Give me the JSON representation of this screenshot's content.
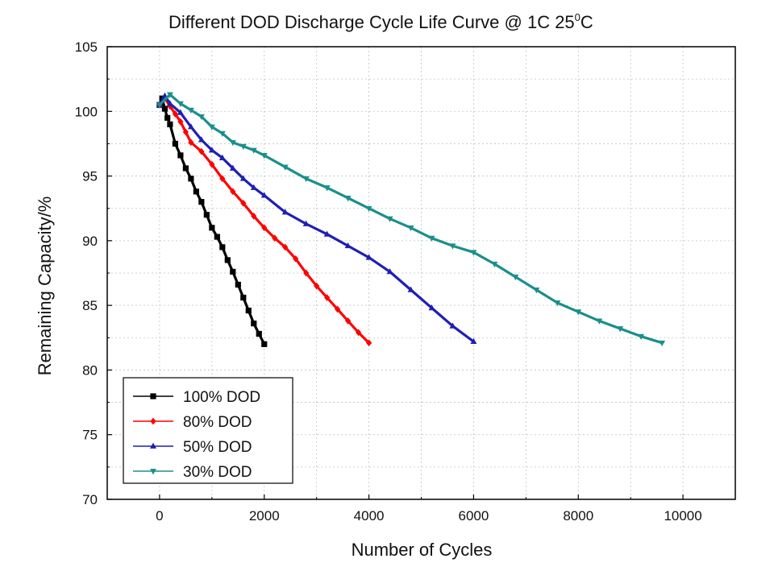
{
  "chart_data": {
    "type": "line",
    "title": "Different DOD Discharge Cycle Life Curve @ 1C 25",
    "title_superscript": "0",
    "title_suffix": "C",
    "xlabel": "Number of Cycles",
    "ylabel": "Remaining Capacity/%",
    "xlim": [
      -1000,
      11000
    ],
    "ylim": [
      70,
      105
    ],
    "xticks": [
      0,
      2000,
      4000,
      6000,
      8000,
      10000
    ],
    "yticks": [
      70,
      75,
      80,
      85,
      90,
      95,
      100,
      105
    ],
    "xtick_labels": [
      "0",
      "2000",
      "4000",
      "6000",
      "8000",
      "10000"
    ],
    "ytick_labels": [
      "70",
      "75",
      "80",
      "85",
      "90",
      "95",
      "100",
      "105"
    ],
    "grid": true,
    "legend_position": "bottom-left",
    "series": [
      {
        "name": "100% DOD",
        "color": "#000000",
        "marker": "square",
        "x": [
          0,
          50,
          100,
          150,
          200,
          300,
          400,
          500,
          600,
          700,
          800,
          900,
          1000,
          1100,
          1200,
          1300,
          1400,
          1500,
          1600,
          1700,
          1800,
          1900,
          2000
        ],
        "y": [
          100.5,
          101,
          100.2,
          99.5,
          99,
          97.5,
          96.6,
          95.6,
          94.8,
          93.8,
          93,
          92,
          91,
          90.3,
          89.5,
          88.5,
          87.6,
          86.6,
          85.6,
          84.6,
          83.6,
          82.8,
          82
        ]
      },
      {
        "name": "80% DOD",
        "color": "#ff0000",
        "marker": "diamond",
        "x": [
          0,
          100,
          200,
          300,
          400,
          500,
          600,
          800,
          1000,
          1200,
          1400,
          1600,
          1800,
          2000,
          2200,
          2400,
          2600,
          2800,
          3000,
          3200,
          3400,
          3600,
          3800,
          4000
        ],
        "y": [
          100.5,
          101,
          100.4,
          99.8,
          99.2,
          98.4,
          97.6,
          96.9,
          95.9,
          94.8,
          93.8,
          92.9,
          91.9,
          91,
          90.2,
          89.5,
          88.6,
          87.5,
          86.5,
          85.6,
          84.7,
          83.8,
          82.9,
          82.1
        ]
      },
      {
        "name": "50% DOD",
        "color": "#1f1fb4",
        "marker": "triangle-up",
        "x": [
          0,
          100,
          200,
          400,
          600,
          800,
          1000,
          1200,
          1400,
          1600,
          1800,
          2000,
          2400,
          2800,
          3200,
          3600,
          4000,
          4400,
          4800,
          5200,
          5600,
          6000
        ],
        "y": [
          100.5,
          101.2,
          100.6,
          99.9,
          98.8,
          97.8,
          97,
          96.4,
          95.6,
          94.8,
          94.1,
          93.5,
          92.2,
          91.3,
          90.5,
          89.6,
          88.7,
          87.6,
          86.2,
          84.8,
          83.4,
          82.2
        ]
      },
      {
        "name": "30% DOD",
        "color": "#1a8f8a",
        "marker": "triangle-down",
        "x": [
          0,
          200,
          400,
          600,
          800,
          1000,
          1200,
          1400,
          1600,
          1800,
          2000,
          2400,
          2800,
          3200,
          3600,
          4000,
          4400,
          4800,
          5200,
          5600,
          6000,
          6400,
          6800,
          7200,
          7600,
          8000,
          8400,
          8800,
          9200,
          9600
        ],
        "y": [
          100.5,
          101.3,
          100.6,
          100.1,
          99.6,
          98.8,
          98.3,
          97.6,
          97.3,
          97,
          96.6,
          95.7,
          94.8,
          94.1,
          93.3,
          92.5,
          91.7,
          91,
          90.2,
          89.6,
          89.1,
          88.2,
          87.2,
          86.2,
          85.2,
          84.5,
          83.8,
          83.2,
          82.6,
          82.1
        ]
      }
    ]
  }
}
